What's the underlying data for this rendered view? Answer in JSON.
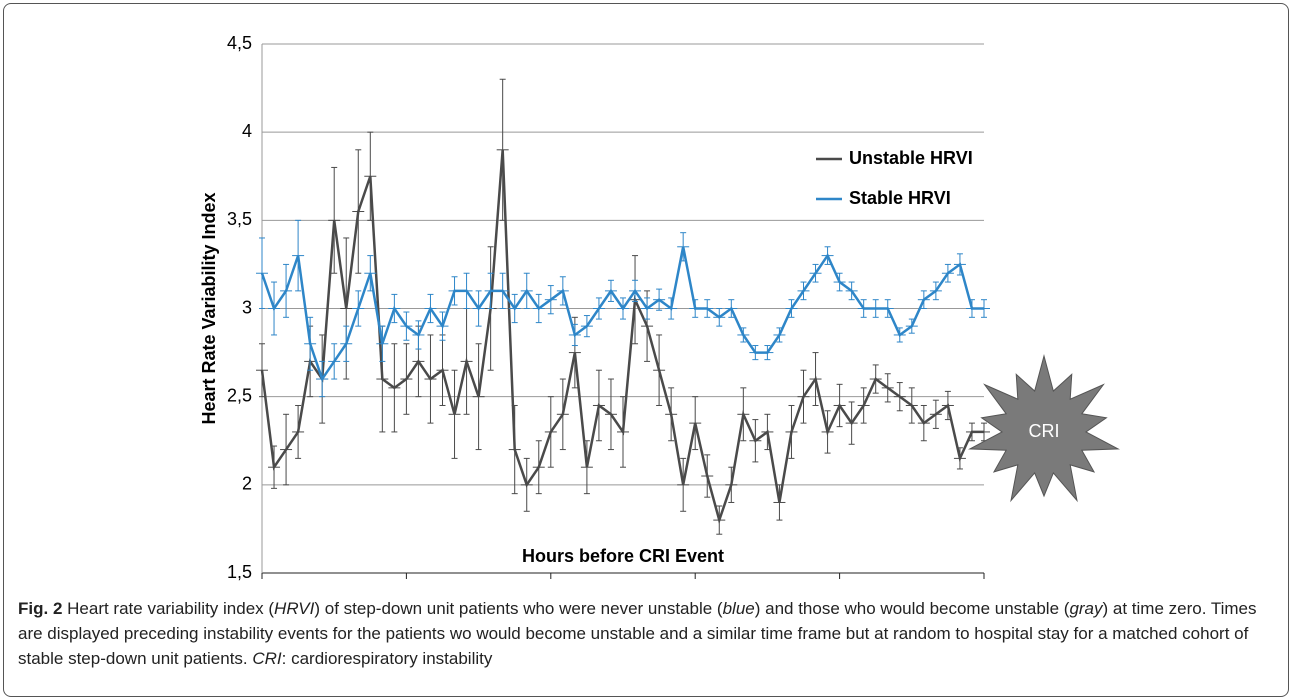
{
  "chart_data": {
    "type": "line",
    "x_label": "Hours before CRI Event",
    "y_label": "Heart Rate Variability Index",
    "xlim": [
      120,
      0
    ],
    "xticks": [
      120,
      96,
      72,
      48,
      24,
      0
    ],
    "ylim": [
      1.5,
      4.5
    ],
    "yticks": [
      {
        "value": 1.5,
        "label": "1,5"
      },
      2,
      {
        "value": 2.5,
        "label": "2,5"
      },
      3,
      {
        "value": 3.5,
        "label": "3,5"
      },
      4,
      {
        "value": 4.5,
        "label": "4,5"
      }
    ],
    "grid": true,
    "annotation": "CRI",
    "x": [
      120,
      118,
      116,
      114,
      112,
      110,
      108,
      106,
      104,
      102,
      100,
      98,
      96,
      94,
      92,
      90,
      88,
      86,
      84,
      82,
      80,
      78,
      76,
      74,
      72,
      70,
      68,
      66,
      64,
      62,
      60,
      58,
      56,
      54,
      52,
      50,
      48,
      46,
      44,
      42,
      40,
      38,
      36,
      34,
      32,
      30,
      28,
      26,
      24,
      22,
      20,
      18,
      16,
      14,
      12,
      10,
      8,
      6,
      4,
      2,
      0
    ],
    "series": [
      {
        "name": "Unstable HRVI",
        "color": "#4a4a4a",
        "values": [
          2.65,
          2.1,
          2.2,
          2.3,
          2.7,
          2.6,
          3.5,
          3.0,
          3.55,
          3.75,
          2.6,
          2.55,
          2.6,
          2.7,
          2.6,
          2.65,
          2.4,
          2.7,
          2.5,
          3.0,
          3.9,
          2.2,
          2.0,
          2.1,
          2.3,
          2.4,
          2.75,
          2.1,
          2.45,
          2.4,
          2.3,
          3.05,
          2.9,
          2.65,
          2.4,
          2.0,
          2.35,
          2.05,
          1.8,
          2.0,
          2.4,
          2.25,
          2.3,
          1.9,
          2.3,
          2.5,
          2.6,
          2.3,
          2.45,
          2.35,
          2.45,
          2.6,
          2.55,
          2.5,
          2.45,
          2.35,
          2.4,
          2.45,
          2.15,
          2.3,
          2.3
        ],
        "errors": [
          0.15,
          0.12,
          0.2,
          0.15,
          0.2,
          0.25,
          0.3,
          0.4,
          0.35,
          0.25,
          0.3,
          0.25,
          0.2,
          0.2,
          0.25,
          0.2,
          0.25,
          0.3,
          0.3,
          0.35,
          0.4,
          0.25,
          0.15,
          0.15,
          0.2,
          0.2,
          0.2,
          0.15,
          0.2,
          0.2,
          0.2,
          0.25,
          0.2,
          0.2,
          0.15,
          0.15,
          0.15,
          0.12,
          0.08,
          0.1,
          0.15,
          0.12,
          0.1,
          0.1,
          0.15,
          0.15,
          0.15,
          0.12,
          0.12,
          0.12,
          0.1,
          0.08,
          0.08,
          0.08,
          0.1,
          0.1,
          0.08,
          0.08,
          0.06,
          0.05,
          0.05
        ]
      },
      {
        "name": "Stable HRVI",
        "color": "#2e86c8",
        "values": [
          3.2,
          3.0,
          3.1,
          3.3,
          2.8,
          2.6,
          2.7,
          2.8,
          3.0,
          3.2,
          2.8,
          3.0,
          2.9,
          2.85,
          3.0,
          2.9,
          3.1,
          3.1,
          3.0,
          3.1,
          3.1,
          3.0,
          3.1,
          3.0,
          3.05,
          3.1,
          2.85,
          2.9,
          3.0,
          3.1,
          3.0,
          3.1,
          3.0,
          3.05,
          3.0,
          3.35,
          3.0,
          3.0,
          2.95,
          3.0,
          2.85,
          2.75,
          2.75,
          2.85,
          3.0,
          3.1,
          3.2,
          3.3,
          3.15,
          3.1,
          3.0,
          3.0,
          3.0,
          2.85,
          2.9,
          3.05,
          3.1,
          3.2,
          3.25,
          3.0,
          3.0
        ],
        "errors": [
          0.2,
          0.15,
          0.15,
          0.2,
          0.15,
          0.1,
          0.1,
          0.1,
          0.1,
          0.1,
          0.1,
          0.08,
          0.08,
          0.08,
          0.08,
          0.08,
          0.08,
          0.1,
          0.1,
          0.1,
          0.1,
          0.08,
          0.1,
          0.08,
          0.08,
          0.08,
          0.06,
          0.06,
          0.06,
          0.06,
          0.06,
          0.06,
          0.06,
          0.06,
          0.06,
          0.08,
          0.05,
          0.05,
          0.05,
          0.05,
          0.04,
          0.04,
          0.04,
          0.04,
          0.05,
          0.05,
          0.05,
          0.05,
          0.05,
          0.05,
          0.05,
          0.05,
          0.05,
          0.04,
          0.04,
          0.05,
          0.05,
          0.05,
          0.06,
          0.05,
          0.05
        ]
      }
    ]
  },
  "caption": {
    "label": "Fig. 2",
    "segments": [
      {
        "text": " Heart rate variability index (",
        "italic": false
      },
      {
        "text": "HRVI",
        "italic": true
      },
      {
        "text": ") of step-down unit patients who were never unstable (",
        "italic": false
      },
      {
        "text": "blue",
        "italic": true
      },
      {
        "text": ") and those who would become unstable (",
        "italic": false
      },
      {
        "text": "gray",
        "italic": true
      },
      {
        "text": ") at time zero. Times are displayed preceding instability events for the patients wo would become unstable and a similar time frame but at random to hospital stay for a matched cohort of stable step-down unit patients. ",
        "italic": false
      },
      {
        "text": "CRI",
        "italic": true
      },
      {
        "text": ": cardiorespiratory instability",
        "italic": false
      }
    ]
  }
}
